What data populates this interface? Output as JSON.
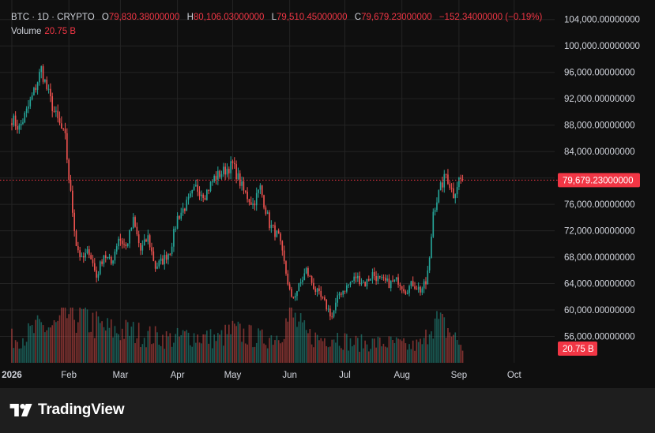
{
  "legend": {
    "symbol": "BTC · 1D · CRYPTO",
    "open_label": "O",
    "open": "79,830.38000000",
    "high_label": "H",
    "high": "80,106.03000000",
    "low_label": "L",
    "low": "79,510.45000000",
    "close_label": "C",
    "close": "79,679.23000000",
    "change": "−152.34000000 (−0.19%)",
    "volume_label": "Volume",
    "volume": "20.75 B"
  },
  "brand": {
    "name": "TradingView",
    "icon": "tradingview-logo-icon"
  },
  "colors": {
    "up": "#26a69a",
    "down": "#ef5350",
    "badge": "#f23645",
    "background": "#0f0f0f",
    "grid": "#242424"
  },
  "chart_data": {
    "type": "candlestick",
    "symbol": "BTC",
    "interval": "1D",
    "y_range": [
      52000,
      106000
    ],
    "y_ticks": [
      56000,
      60000,
      64000,
      68000,
      72000,
      76000,
      80000,
      84000,
      88000,
      92000,
      96000,
      100000,
      104000
    ],
    "y_tick_labels": [
      "56,000.00000000",
      "60,000.00000000",
      "64,000.00000000",
      "68,000.00000000",
      "72,000.00000000",
      "76,000.00000000",
      "80,000.00000000",
      "84,000.00000000",
      "88,000.00000000",
      "92,000.00000000",
      "96,000.00000000",
      "100,000.00000000",
      "104,000.00000000"
    ],
    "x_ticks": [
      "2026",
      "Feb",
      "Mar",
      "Apr",
      "May",
      "Jun",
      "Jul",
      "Aug",
      "Sep",
      "Oct"
    ],
    "x_tick_days": [
      0,
      31,
      59,
      90,
      120,
      151,
      181,
      212,
      243,
      273
    ],
    "x_day_range": [
      -3,
      295
    ],
    "last_price": 79679.23,
    "last_price_label": "79,679.23000000",
    "last_volume_label": "20.75 B",
    "close_keypoints": [
      [
        0,
        89000
      ],
      [
        4,
        87500
      ],
      [
        8,
        90000
      ],
      [
        12,
        93000
      ],
      [
        16,
        96500
      ],
      [
        19,
        93500
      ],
      [
        23,
        90000
      ],
      [
        26,
        88000
      ],
      [
        29,
        86000
      ],
      [
        31,
        80000
      ],
      [
        33,
        75000
      ],
      [
        35,
        70000
      ],
      [
        38,
        67500
      ],
      [
        42,
        69000
      ],
      [
        46,
        65000
      ],
      [
        50,
        68500
      ],
      [
        54,
        67000
      ],
      [
        58,
        71000
      ],
      [
        62,
        69500
      ],
      [
        66,
        73500
      ],
      [
        70,
        69000
      ],
      [
        74,
        71000
      ],
      [
        78,
        66500
      ],
      [
        82,
        67500
      ],
      [
        86,
        69000
      ],
      [
        90,
        74000
      ],
      [
        95,
        76000
      ],
      [
        100,
        78500
      ],
      [
        105,
        77500
      ],
      [
        110,
        80000
      ],
      [
        115,
        81000
      ],
      [
        120,
        82000
      ],
      [
        126,
        78000
      ],
      [
        131,
        76000
      ],
      [
        135,
        78500
      ],
      [
        140,
        73000
      ],
      [
        145,
        71000
      ],
      [
        148,
        67000
      ],
      [
        152,
        61500
      ],
      [
        156,
        63500
      ],
      [
        160,
        66000
      ],
      [
        165,
        63000
      ],
      [
        170,
        61000
      ],
      [
        174,
        59000
      ],
      [
        178,
        62500
      ],
      [
        182,
        63500
      ],
      [
        187,
        65000
      ],
      [
        192,
        64000
      ],
      [
        196,
        65500
      ],
      [
        200,
        64500
      ],
      [
        205,
        64000
      ],
      [
        210,
        64500
      ],
      [
        214,
        63000
      ],
      [
        218,
        64000
      ],
      [
        222,
        63000
      ],
      [
        225,
        64000
      ],
      [
        227,
        67500
      ],
      [
        229,
        75000
      ],
      [
        233,
        78500
      ],
      [
        236,
        80500
      ],
      [
        240,
        77500
      ],
      [
        243,
        79800
      ],
      [
        245,
        79679
      ]
    ],
    "volume_keypoints": [
      [
        0,
        6
      ],
      [
        8,
        7
      ],
      [
        16,
        9
      ],
      [
        24,
        9
      ],
      [
        32,
        13
      ],
      [
        40,
        11
      ],
      [
        48,
        9
      ],
      [
        56,
        8
      ],
      [
        64,
        8
      ],
      [
        72,
        7
      ],
      [
        80,
        6.5
      ],
      [
        88,
        6
      ],
      [
        96,
        7
      ],
      [
        104,
        6.5
      ],
      [
        112,
        6
      ],
      [
        120,
        8
      ],
      [
        128,
        7
      ],
      [
        136,
        6
      ],
      [
        144,
        7
      ],
      [
        152,
        12
      ],
      [
        160,
        7
      ],
      [
        168,
        6
      ],
      [
        176,
        7
      ],
      [
        184,
        5
      ],
      [
        192,
        5
      ],
      [
        200,
        5
      ],
      [
        208,
        5
      ],
      [
        216,
        4
      ],
      [
        224,
        5
      ],
      [
        228,
        11
      ],
      [
        232,
        10
      ],
      [
        238,
        8
      ],
      [
        245,
        4
      ]
    ]
  }
}
